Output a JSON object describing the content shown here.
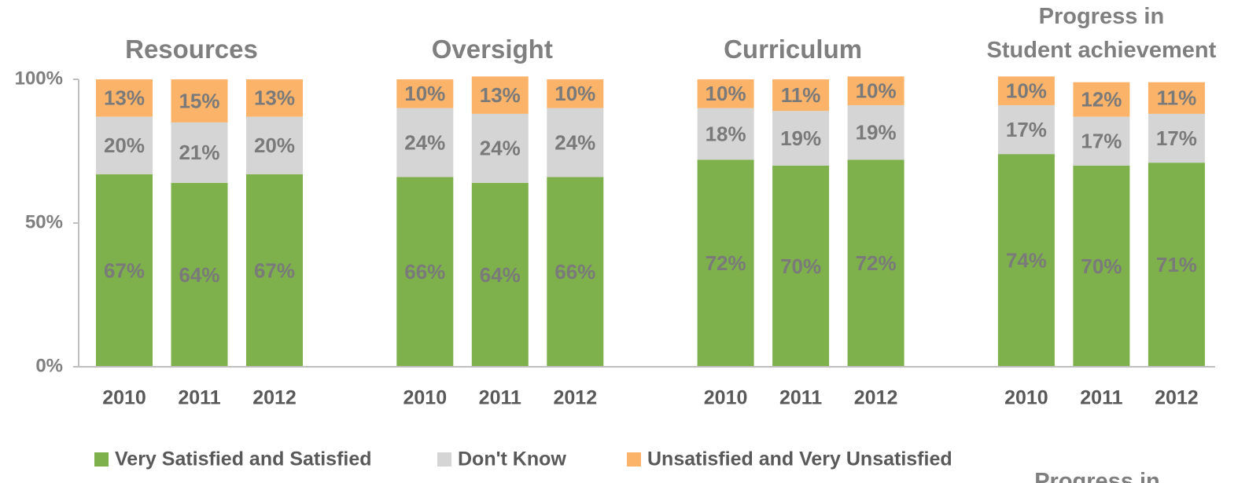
{
  "chart_data": {
    "type": "stacked_bar",
    "ylim": [
      0,
      100
    ],
    "yticks": [
      {
        "value": 0,
        "label": "0%"
      },
      {
        "value": 50,
        "label": "50%"
      },
      {
        "value": 100,
        "label": "100%"
      }
    ],
    "groups": [
      {
        "title": "Resources",
        "categories": [
          "2010",
          "2011",
          "2012"
        ]
      },
      {
        "title": "Oversight",
        "categories": [
          "2010",
          "2011",
          "2012"
        ]
      },
      {
        "title": "Curriculum",
        "categories": [
          "2010",
          "2011",
          "2012"
        ]
      },
      {
        "title": "Progress in\nStudent achievement",
        "categories": [
          "2010",
          "2011",
          "2012"
        ]
      }
    ],
    "series": [
      {
        "name": "Very Satisfied and Satisfied",
        "color": "#7eb04c",
        "values": [
          [
            67,
            64,
            67
          ],
          [
            66,
            64,
            66
          ],
          [
            72,
            70,
            72
          ],
          [
            74,
            70,
            71
          ]
        ],
        "value_labels": [
          [
            "67%",
            "64%",
            "67%"
          ],
          [
            "66%",
            "64%",
            "66%"
          ],
          [
            "72%",
            "70%",
            "72%"
          ],
          [
            "74%",
            "70%",
            "71%"
          ]
        ]
      },
      {
        "name": "Don't Know",
        "color": "#d5d5d5",
        "values": [
          [
            20,
            21,
            20
          ],
          [
            24,
            24,
            24
          ],
          [
            18,
            19,
            19
          ],
          [
            17,
            17,
            17
          ]
        ],
        "value_labels": [
          [
            "20%",
            "21%",
            "20%"
          ],
          [
            "24%",
            "24%",
            "24%"
          ],
          [
            "18%",
            "19%",
            "19%"
          ],
          [
            "17%",
            "17%",
            "17%"
          ]
        ]
      },
      {
        "name": "Unsatisfied and Very Unsatisfied",
        "color": "#fbb36a",
        "values": [
          [
            13,
            15,
            13
          ],
          [
            10,
            13,
            10
          ],
          [
            10,
            11,
            10
          ],
          [
            10,
            12,
            11
          ]
        ],
        "value_labels": [
          [
            "13%",
            "15%",
            "13%"
          ],
          [
            "10%",
            "13%",
            "10%"
          ],
          [
            "10%",
            "11%",
            "10%"
          ],
          [
            "10%",
            "12%",
            "11%"
          ]
        ]
      }
    ],
    "legend": "bottom-left",
    "annotation": "Progress in"
  }
}
